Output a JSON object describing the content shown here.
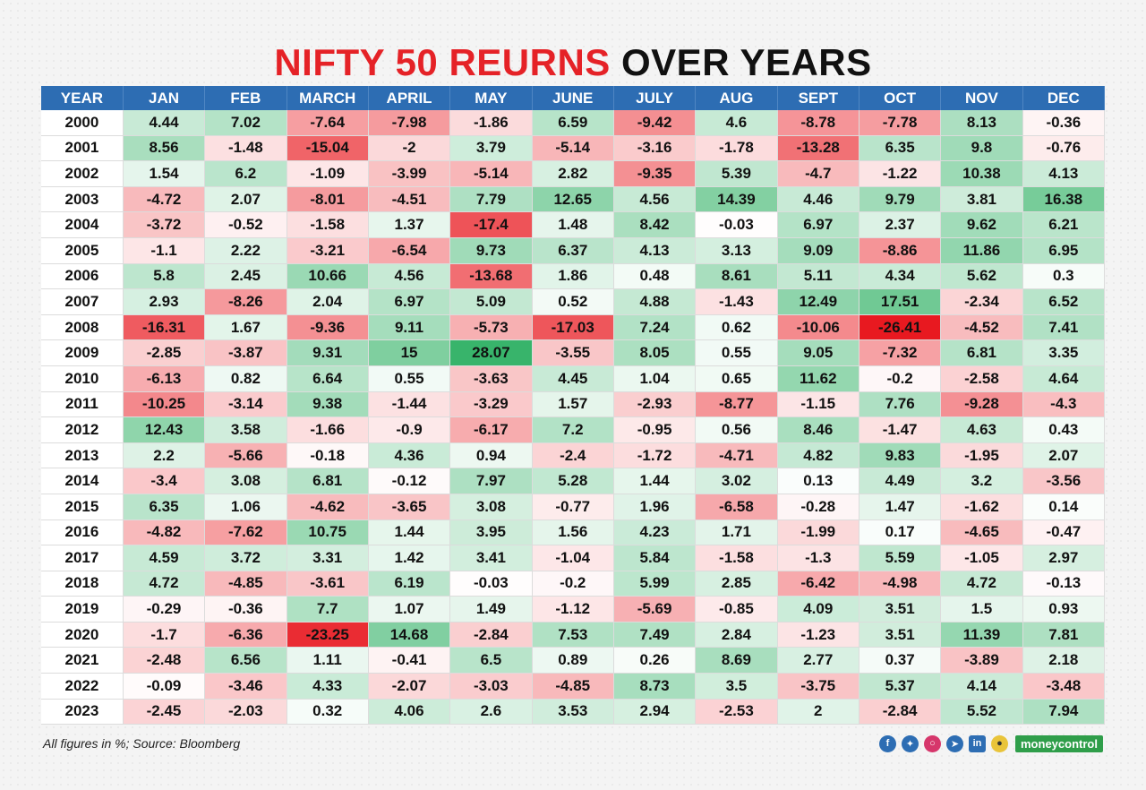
{
  "title": {
    "part_red": "NIFTY 50 REURNS",
    "part_black": "OVER YEARS"
  },
  "footer": {
    "note": "All figures in %; Source: Bloomberg",
    "brand": "moneycontrol"
  },
  "social_icons": [
    "facebook-icon",
    "twitter-icon",
    "instagram-icon",
    "telegram-icon",
    "linkedin-icon",
    "snapchat-icon"
  ],
  "colors": {
    "header": "#2d6db3",
    "positive": "#2eb063",
    "negative": "#e8141b",
    "title_red": "#e52227"
  },
  "chart_data": {
    "type": "heatmap",
    "title": "NIFTY 50 REURNS OVER YEARS",
    "corner_label": "YEAR",
    "columns": [
      "JAN",
      "FEB",
      "MARCH",
      "APRIL",
      "MAY",
      "JUNE",
      "JULY",
      "AUG",
      "SEPT",
      "OCT",
      "NOV",
      "DEC"
    ],
    "rows": [
      {
        "year": "2000",
        "values": [
          4.44,
          7.02,
          -7.64,
          -7.98,
          -1.86,
          6.59,
          -9.42,
          4.6,
          -8.78,
          -7.78,
          8.13,
          -0.36
        ]
      },
      {
        "year": "2001",
        "values": [
          8.56,
          -1.48,
          -15.04,
          -2,
          3.79,
          -5.14,
          -3.16,
          -1.78,
          -13.28,
          6.35,
          9.8,
          -0.76
        ]
      },
      {
        "year": "2002",
        "values": [
          1.54,
          6.2,
          -1.09,
          -3.99,
          -5.14,
          2.82,
          -9.35,
          5.39,
          -4.7,
          -1.22,
          10.38,
          4.13
        ]
      },
      {
        "year": "2003",
        "values": [
          -4.72,
          2.07,
          -8.01,
          -4.51,
          7.79,
          12.65,
          4.56,
          14.39,
          4.46,
          9.79,
          3.81,
          16.38
        ]
      },
      {
        "year": "2004",
        "values": [
          -3.72,
          -0.52,
          -1.58,
          1.37,
          -17.4,
          1.48,
          8.42,
          -0.03,
          6.97,
          2.37,
          9.62,
          6.21
        ]
      },
      {
        "year": "2005",
        "values": [
          -1.1,
          2.22,
          -3.21,
          -6.54,
          9.73,
          6.37,
          4.13,
          3.13,
          9.09,
          -8.86,
          11.86,
          6.95
        ]
      },
      {
        "year": "2006",
        "values": [
          5.8,
          2.45,
          10.66,
          4.56,
          -13.68,
          1.86,
          0.48,
          8.61,
          5.11,
          4.34,
          5.62,
          0.3
        ]
      },
      {
        "year": "2007",
        "values": [
          2.93,
          -8.26,
          2.04,
          6.97,
          5.09,
          0.52,
          4.88,
          -1.43,
          12.49,
          17.51,
          -2.34,
          6.52
        ]
      },
      {
        "year": "2008",
        "values": [
          -16.31,
          1.67,
          -9.36,
          9.11,
          -5.73,
          -17.03,
          7.24,
          0.62,
          -10.06,
          -26.41,
          -4.52,
          7.41
        ]
      },
      {
        "year": "2009",
        "values": [
          -2.85,
          -3.87,
          9.31,
          15,
          28.07,
          -3.55,
          8.05,
          0.55,
          9.05,
          -7.32,
          6.81,
          3.35
        ]
      },
      {
        "year": "2010",
        "values": [
          -6.13,
          0.82,
          6.64,
          0.55,
          -3.63,
          4.45,
          1.04,
          0.65,
          11.62,
          -0.2,
          -2.58,
          4.64
        ]
      },
      {
        "year": "2011",
        "values": [
          -10.25,
          -3.14,
          9.38,
          -1.44,
          -3.29,
          1.57,
          -2.93,
          -8.77,
          -1.15,
          7.76,
          -9.28,
          -4.3
        ]
      },
      {
        "year": "2012",
        "values": [
          12.43,
          3.58,
          -1.66,
          -0.9,
          -6.17,
          7.2,
          -0.95,
          0.56,
          8.46,
          -1.47,
          4.63,
          0.43
        ]
      },
      {
        "year": "2013",
        "values": [
          2.2,
          -5.66,
          -0.18,
          4.36,
          0.94,
          -2.4,
          -1.72,
          -4.71,
          4.82,
          9.83,
          -1.95,
          2.07
        ]
      },
      {
        "year": "2014",
        "values": [
          -3.4,
          3.08,
          6.81,
          -0.12,
          7.97,
          5.28,
          1.44,
          3.02,
          0.13,
          4.49,
          3.2,
          -3.56
        ]
      },
      {
        "year": "2015",
        "values": [
          6.35,
          1.06,
          -4.62,
          -3.65,
          3.08,
          -0.77,
          1.96,
          -6.58,
          -0.28,
          1.47,
          -1.62,
          0.14
        ]
      },
      {
        "year": "2016",
        "values": [
          -4.82,
          -7.62,
          10.75,
          1.44,
          3.95,
          1.56,
          4.23,
          1.71,
          -1.99,
          0.17,
          -4.65,
          -0.47
        ]
      },
      {
        "year": "2017",
        "values": [
          4.59,
          3.72,
          3.31,
          1.42,
          3.41,
          -1.04,
          5.84,
          -1.58,
          -1.3,
          5.59,
          -1.05,
          2.97
        ]
      },
      {
        "year": "2018",
        "values": [
          4.72,
          -4.85,
          -3.61,
          6.19,
          -0.03,
          -0.2,
          5.99,
          2.85,
          -6.42,
          -4.98,
          4.72,
          -0.13
        ]
      },
      {
        "year": "2019",
        "values": [
          -0.29,
          -0.36,
          7.7,
          1.07,
          1.49,
          -1.12,
          -5.69,
          -0.85,
          4.09,
          3.51,
          1.5,
          0.93
        ]
      },
      {
        "year": "2020",
        "values": [
          -1.7,
          -6.36,
          -23.25,
          14.68,
          -2.84,
          7.53,
          7.49,
          2.84,
          -1.23,
          3.51,
          11.39,
          7.81
        ]
      },
      {
        "year": "2021",
        "values": [
          -2.48,
          6.56,
          1.11,
          -0.41,
          6.5,
          0.89,
          0.26,
          8.69,
          2.77,
          0.37,
          -3.89,
          2.18
        ]
      },
      {
        "year": "2022",
        "values": [
          -0.09,
          -3.46,
          4.33,
          -2.07,
          -3.03,
          -4.85,
          8.73,
          3.5,
          -3.75,
          5.37,
          4.14,
          -3.48
        ]
      },
      {
        "year": "2023",
        "values": [
          -2.45,
          -2.03,
          0.32,
          4.06,
          2.6,
          3.53,
          2.94,
          -2.53,
          2,
          -2.84,
          5.52,
          7.94
        ]
      }
    ]
  }
}
